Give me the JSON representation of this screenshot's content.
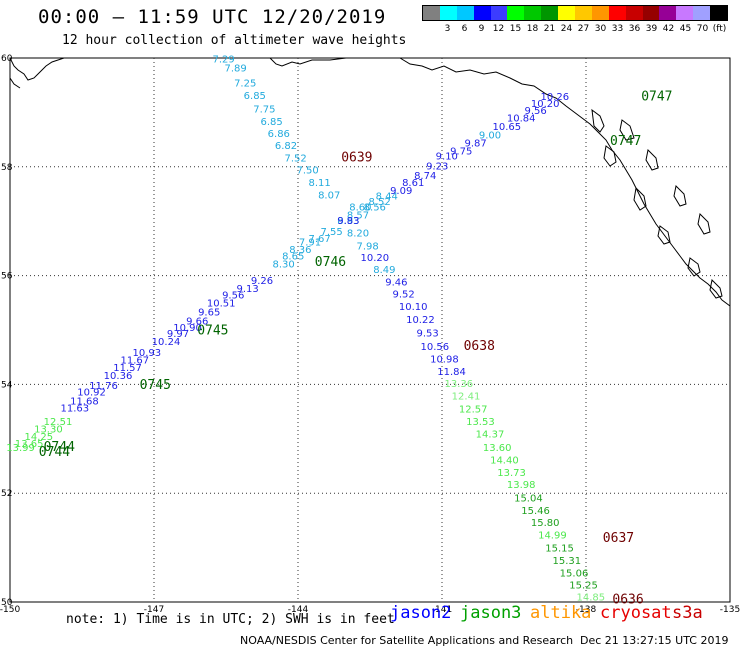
{
  "title": "00:00 – 11:59 UTC 12/20/2019",
  "subtitle": "12 hour collection of altimeter wave heights",
  "legend": {
    "unit": "(ft)",
    "colors": [
      "#808080",
      "#00ffff",
      "#00c8ff",
      "#0000ff",
      "#3c3cff",
      "#00ff00",
      "#00c800",
      "#009600",
      "#ffff00",
      "#ffc800",
      "#ff9600",
      "#ff0000",
      "#c80000",
      "#960000",
      "#960096",
      "#c878ff",
      "#a0a0ff",
      "#000000"
    ],
    "labels": [
      "3",
      "6",
      "9",
      "12",
      "15",
      "18",
      "21",
      "24",
      "27",
      "30",
      "33",
      "36",
      "39",
      "42",
      "45",
      "70"
    ]
  },
  "axes": {
    "lon_labels": [
      "-150",
      "-147",
      "-144",
      "-141",
      "-138",
      "-135"
    ],
    "lat_labels": [
      "60",
      "58",
      "56",
      "54",
      "52",
      "50"
    ]
  },
  "tracks": [
    {
      "name": "jason2-diagonal",
      "points": [
        {
          "label": "13.99",
          "color": "#4ce84c",
          "lon": -149.78,
          "lat": 52.78
        },
        {
          "label": "13.65",
          "color": "#4ce84c",
          "lon": -149.6,
          "lat": 52.85
        },
        {
          "label": "14.25",
          "color": "#4ce84c",
          "lon": -149.4,
          "lat": 52.98
        },
        {
          "label": "13.30",
          "color": "#4ce84c",
          "lon": -149.2,
          "lat": 53.12
        },
        {
          "label": "12.51",
          "color": "#4ce84c",
          "lon": -149.0,
          "lat": 53.25
        },
        {
          "label": "11.63",
          "color": "#1e1ee6",
          "lon": -148.65,
          "lat": 53.5
        },
        {
          "label": "11.68",
          "color": "#1e1ee6",
          "lon": -148.45,
          "lat": 53.63
        },
        {
          "label": "10.92",
          "color": "#1e1ee6",
          "lon": -148.3,
          "lat": 53.8
        },
        {
          "label": "11.76",
          "color": "#1e1ee6",
          "lon": -148.05,
          "lat": 53.92
        },
        {
          "label": "10.36",
          "color": "#1e1ee6",
          "lon": -147.75,
          "lat": 54.1
        },
        {
          "label": "11.57",
          "color": "#1e1ee6",
          "lon": -147.55,
          "lat": 54.25
        },
        {
          "label": "11.67",
          "color": "#1e1ee6",
          "lon": -147.4,
          "lat": 54.38
        },
        {
          "label": "10.93",
          "color": "#1e1ee6",
          "lon": -147.15,
          "lat": 54.52
        },
        {
          "label": "10.24",
          "color": "#1e1ee6",
          "lon": -146.75,
          "lat": 54.72
        },
        {
          "label": "9.97",
          "color": "#1e1ee6",
          "lon": -146.5,
          "lat": 54.87
        },
        {
          "label": "10.90",
          "color": "#1e1ee6",
          "lon": -146.3,
          "lat": 54.98
        },
        {
          "label": "9.66",
          "color": "#1e1ee6",
          "lon": -146.1,
          "lat": 55.1
        },
        {
          "label": "9.65",
          "color": "#1e1ee6",
          "lon": -145.85,
          "lat": 55.27
        },
        {
          "label": "10.51",
          "color": "#1e1ee6",
          "lon": -145.6,
          "lat": 55.43
        },
        {
          "label": "9.56",
          "color": "#1e1ee6",
          "lon": -145.35,
          "lat": 55.58
        },
        {
          "label": "9.13",
          "color": "#1e1ee6",
          "lon": -145.05,
          "lat": 55.7
        },
        {
          "label": "9.26",
          "color": "#1e1ee6",
          "lon": -144.75,
          "lat": 55.85
        },
        {
          "label": "8.30",
          "color": "#22aadd",
          "lon": -144.3,
          "lat": 56.15
        },
        {
          "label": "8.65",
          "color": "#22aadd",
          "lon": -144.1,
          "lat": 56.3
        },
        {
          "label": "8.36",
          "color": "#22aadd",
          "lon": -143.95,
          "lat": 56.42
        },
        {
          "label": "7.91",
          "color": "#22aadd",
          "lon": -143.75,
          "lat": 56.55
        },
        {
          "label": "7.67",
          "color": "#22aadd",
          "lon": -143.55,
          "lat": 56.62
        },
        {
          "label": "7.55",
          "color": "#22aadd",
          "lon": -143.3,
          "lat": 56.75
        },
        {
          "label": "8.93",
          "color": "#22aadd",
          "lon": -142.95,
          "lat": 56.95
        },
        {
          "label": "8.57",
          "color": "#22aadd",
          "lon": -142.75,
          "lat": 57.05
        },
        {
          "label": "8.60",
          "color": "#22aadd",
          "lon": -142.7,
          "lat": 57.2
        },
        {
          "label": "8.56",
          "color": "#22aadd",
          "lon": -142.4,
          "lat": 57.2
        },
        {
          "label": "8.52",
          "color": "#22aadd",
          "lon": -142.3,
          "lat": 57.3
        },
        {
          "label": "8.44",
          "color": "#22aadd",
          "lon": -142.15,
          "lat": 57.4
        },
        {
          "label": "9.09",
          "color": "#1e1ee6",
          "lon": -141.85,
          "lat": 57.5
        },
        {
          "label": "8.61",
          "color": "#1e1ee6",
          "lon": -141.6,
          "lat": 57.65
        },
        {
          "label": "8.74",
          "color": "#1e1ee6",
          "lon": -141.35,
          "lat": 57.78
        },
        {
          "label": "9.23",
          "color": "#1e1ee6",
          "lon": -141.1,
          "lat": 57.95
        },
        {
          "label": "9.10",
          "color": "#1e1ee6",
          "lon": -140.9,
          "lat": 58.13
        },
        {
          "label": "9.75",
          "color": "#1e1ee6",
          "lon": -140.6,
          "lat": 58.23
        },
        {
          "label": "9.87",
          "color": "#1e1ee6",
          "lon": -140.3,
          "lat": 58.37
        },
        {
          "label": "9.00",
          "color": "#22aadd",
          "lon": -140.0,
          "lat": 58.52
        },
        {
          "label": "10.65",
          "color": "#1e1ee6",
          "lon": -139.65,
          "lat": 58.68
        },
        {
          "label": "10.84",
          "color": "#1e1ee6",
          "lon": -139.35,
          "lat": 58.83
        },
        {
          "label": "9.56",
          "color": "#1e1ee6",
          "lon": -139.05,
          "lat": 58.97
        },
        {
          "label": "10.20",
          "color": "#1e1ee6",
          "lon": -138.85,
          "lat": 59.1
        },
        {
          "label": "10.26",
          "color": "#1e1ee6",
          "lon": -138.65,
          "lat": 59.23
        }
      ]
    },
    {
      "name": "jason3-descending",
      "points": [
        {
          "label": "7.29",
          "color": "#22aadd",
          "lon": -145.55,
          "lat": 59.92
        },
        {
          "label": "7.89",
          "color": "#22aadd",
          "lon": -145.3,
          "lat": 59.75
        },
        {
          "label": "7.25",
          "color": "#22aadd",
          "lon": -145.1,
          "lat": 59.48
        },
        {
          "label": "6.85",
          "color": "#22aadd",
          "lon": -144.9,
          "lat": 59.25
        },
        {
          "label": "7.75",
          "color": "#22aadd",
          "lon": -144.7,
          "lat": 59.0
        },
        {
          "label": "6.85",
          "color": "#22aadd",
          "lon": -144.55,
          "lat": 58.77
        },
        {
          "label": "6.86",
          "color": "#22aadd",
          "lon": -144.4,
          "lat": 58.55
        },
        {
          "label": "6.82",
          "color": "#22aadd",
          "lon": -144.25,
          "lat": 58.33
        },
        {
          "label": "7.52",
          "color": "#22aadd",
          "lon": -144.05,
          "lat": 58.1
        },
        {
          "label": "7.50",
          "color": "#22aadd",
          "lon": -143.8,
          "lat": 57.88
        },
        {
          "label": "8.11",
          "color": "#22aadd",
          "lon": -143.55,
          "lat": 57.65
        },
        {
          "label": "8.07",
          "color": "#22aadd",
          "lon": -143.35,
          "lat": 57.42
        },
        {
          "label": "9.83",
          "color": "#1e1ee6",
          "lon": -142.95,
          "lat": 56.95
        },
        {
          "label": "8.20",
          "color": "#22aadd",
          "lon": -142.75,
          "lat": 56.72
        },
        {
          "label": "7.98",
          "color": "#22aadd",
          "lon": -142.55,
          "lat": 56.48
        },
        {
          "label": "10.20",
          "color": "#1e1ee6",
          "lon": -142.4,
          "lat": 56.27
        },
        {
          "label": "8.49",
          "color": "#22aadd",
          "lon": -142.2,
          "lat": 56.05
        },
        {
          "label": "9.46",
          "color": "#1e1ee6",
          "lon": -141.95,
          "lat": 55.82
        },
        {
          "label": "9.52",
          "color": "#1e1ee6",
          "lon": -141.8,
          "lat": 55.6
        },
        {
          "label": "10.10",
          "color": "#1e1ee6",
          "lon": -141.6,
          "lat": 55.37
        },
        {
          "label": "10.22",
          "color": "#1e1ee6",
          "lon": -141.45,
          "lat": 55.13
        },
        {
          "label": "9.53",
          "color": "#1e1ee6",
          "lon": -141.3,
          "lat": 54.88
        },
        {
          "label": "10.56",
          "color": "#1e1ee6",
          "lon": -141.15,
          "lat": 54.63
        },
        {
          "label": "10.98",
          "color": "#1e1ee6",
          "lon": -140.95,
          "lat": 54.4
        },
        {
          "label": "11.84",
          "color": "#1e1ee6",
          "lon": -140.8,
          "lat": 54.17
        },
        {
          "label": "13.36",
          "color": "#7dee7d",
          "lon": -140.65,
          "lat": 53.95
        },
        {
          "label": "12.41",
          "color": "#7dee7d",
          "lon": -140.5,
          "lat": 53.72
        },
        {
          "label": "12.57",
          "color": "#4ce84c",
          "lon": -140.35,
          "lat": 53.48
        },
        {
          "label": "13.53",
          "color": "#4ce84c",
          "lon": -140.2,
          "lat": 53.25
        },
        {
          "label": "14.37",
          "color": "#4ce84c",
          "lon": -140.0,
          "lat": 53.02
        },
        {
          "label": "13.60",
          "color": "#4ce84c",
          "lon": -139.85,
          "lat": 52.78
        },
        {
          "label": "14.40",
          "color": "#4ce84c",
          "lon": -139.7,
          "lat": 52.55
        },
        {
          "label": "13.73",
          "color": "#4ce84c",
          "lon": -139.55,
          "lat": 52.32
        },
        {
          "label": "13.98",
          "color": "#4ce84c",
          "lon": -139.35,
          "lat": 52.1
        },
        {
          "label": "15.04",
          "color": "#1fa01f",
          "lon": -139.2,
          "lat": 51.85
        },
        {
          "label": "15.46",
          "color": "#1fa01f",
          "lon": -139.05,
          "lat": 51.62
        },
        {
          "label": "15.80",
          "color": "#1fa01f",
          "lon": -138.85,
          "lat": 51.4
        },
        {
          "label": "14.99",
          "color": "#4ce84c",
          "lon": -138.7,
          "lat": 51.17
        },
        {
          "label": "15.15",
          "color": "#1fa01f",
          "lon": -138.55,
          "lat": 50.93
        },
        {
          "label": "15.31",
          "color": "#1fa01f",
          "lon": -138.4,
          "lat": 50.7
        },
        {
          "label": "15.06",
          "color": "#1fa01f",
          "lon": -138.25,
          "lat": 50.47
        },
        {
          "label": "15.25",
          "color": "#1fa01f",
          "lon": -138.05,
          "lat": 50.25
        },
        {
          "label": "14.85",
          "color": "#7dee7d",
          "lon": -137.9,
          "lat": 50.03
        }
      ]
    }
  ],
  "time_labels": [
    {
      "label": "0744",
      "color": "#006400",
      "lon": -149.3,
      "lat": 52.78
    },
    {
      "label": "0744",
      "color": "#006400",
      "lon": -149.4,
      "lat": 52.68
    },
    {
      "label": "0745",
      "color": "#006400",
      "lon": -147.3,
      "lat": 53.92
    },
    {
      "label": "0745",
      "color": "#006400",
      "lon": -146.1,
      "lat": 54.92
    },
    {
      "label": "0746",
      "color": "#006400",
      "lon": -143.65,
      "lat": 56.18
    },
    {
      "label": "0747",
      "color": "#006400",
      "lon": -137.5,
      "lat": 58.4
    },
    {
      "label": "0747",
      "color": "#006400",
      "lon": -136.85,
      "lat": 59.22
    },
    {
      "label": "0639",
      "color": "#6e0000",
      "lon": -143.1,
      "lat": 58.1
    },
    {
      "label": "0638",
      "color": "#6e0000",
      "lon": -140.55,
      "lat": 54.63
    },
    {
      "label": "0637",
      "color": "#6e0000",
      "lon": -137.65,
      "lat": 51.1
    },
    {
      "label": "0636",
      "color": "#6e0000",
      "lon": -137.45,
      "lat": 49.97
    }
  ],
  "note": "note: 1) Time is in UTC; 2) SWH is in feet",
  "satellites": [
    {
      "name": "jason2",
      "color": "#0000ff"
    },
    {
      "name": "jason3",
      "color": "#00a000"
    },
    {
      "name": "altika",
      "color": "#ff9600"
    },
    {
      "name": "cryosat",
      "color": "#e60000"
    },
    {
      "name": "s3a",
      "color": "#c80000"
    }
  ],
  "footer": {
    "credit": "NOAA/NESDIS Center for Satellite Applications and Research",
    "timestamp": "Dec 21 13:27:15 UTC 2019"
  }
}
